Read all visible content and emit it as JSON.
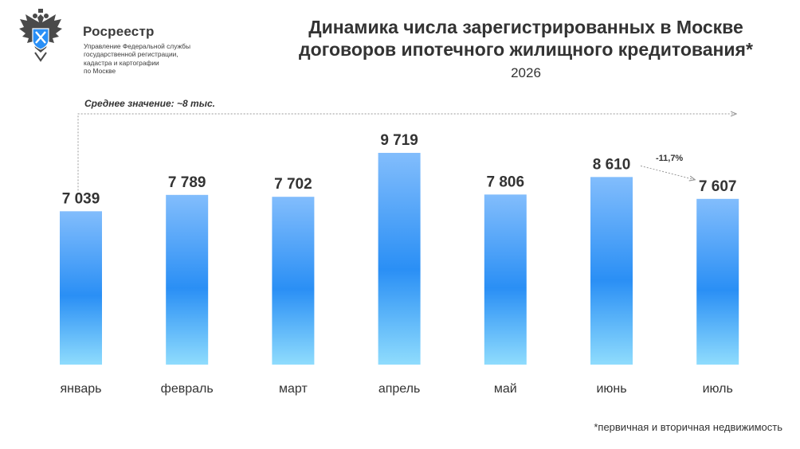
{
  "header": {
    "org_name": "Росреестр",
    "org_description": "Управление Федеральной службы\nгосударственной регистрации,\nкадастра и картографии\nпо Москве",
    "logo_icon": "double-headed-eagle-emblem"
  },
  "title": "Динамика числа зарегистрированных в Москве\nдоговоров ипотечного жилищного кредитования*",
  "subtitle": "2026",
  "average_label": "Среднее значение: ~8 тыс.",
  "footnote": "*первичная и вторичная недвижимость",
  "change_label": "-11,7%",
  "colors": {
    "bar_top": "#82bdfc",
    "bar_mid": "#2a8ff5",
    "bar_bottom": "#8fdcfd",
    "text": "#333333",
    "dotted_line": "#9a9a9a"
  },
  "chart_data": {
    "type": "bar",
    "categories": [
      "январь",
      "февраль",
      "март",
      "апрель",
      "май",
      "июнь",
      "июль"
    ],
    "values": [
      7039,
      7789,
      7702,
      9719,
      7806,
      8610,
      7607
    ],
    "value_labels": [
      "7 039",
      "7 789",
      "7 702",
      "9 719",
      "7 806",
      "8 610",
      "7 607"
    ],
    "title": "Динамика числа зарегистрированных в Москве договоров ипотечного жилищного кредитования*",
    "subtitle": "2026",
    "ylim": [
      0,
      9719
    ],
    "grid": false,
    "legend": "none",
    "annotations": [
      {
        "text": "Среднее значение: ~8 тыс."
      },
      {
        "text": "-11,7%",
        "from": "июнь",
        "to": "июль"
      }
    ]
  }
}
